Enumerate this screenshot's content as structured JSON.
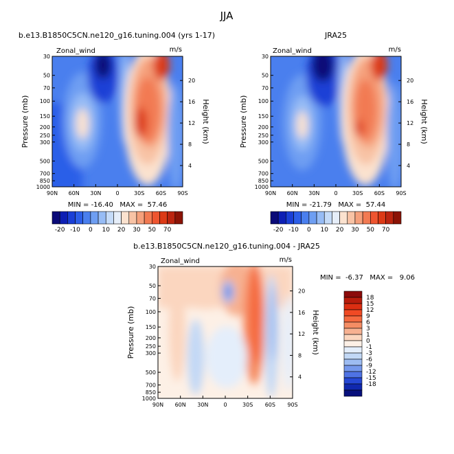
{
  "figure_title": "JJA",
  "chart_data": [
    {
      "type": "heatmap",
      "title": "b.e13.B1850C5CN.ne120_g16.tuning.004 (yrs 1-17)",
      "left_label": "Zonal_wind",
      "units": "m/s",
      "ylabel": "Pressure (mb)",
      "ylabel_right": "Height (km)",
      "x_ticks": [
        "90N",
        "60N",
        "30N",
        "0",
        "30S",
        "60S",
        "90S"
      ],
      "y_ticks": [
        "30",
        "50",
        "70",
        "100",
        "150",
        "200",
        "250",
        "300",
        "500",
        "700",
        "850",
        "1000"
      ],
      "y_ticks_right": [
        "20",
        "16",
        "12",
        "8",
        "4"
      ],
      "stats": "MIN = -16.40   MAX =  57.46",
      "colorbar_labels": [
        "-20",
        "-10",
        "0",
        "10",
        "20",
        "30",
        "50",
        "70"
      ]
    },
    {
      "type": "heatmap",
      "title": "JRA25",
      "left_label": "Zonal_wind",
      "units": "m/s",
      "ylabel": "Pressure (mb)",
      "ylabel_right": "Height (km)",
      "x_ticks": [
        "90N",
        "60N",
        "30N",
        "0",
        "30S",
        "60S",
        "90S"
      ],
      "y_ticks": [
        "30",
        "50",
        "70",
        "100",
        "150",
        "200",
        "250",
        "300",
        "500",
        "700",
        "850",
        "1000"
      ],
      "y_ticks_right": [
        "20",
        "16",
        "12",
        "8",
        "4"
      ],
      "stats": "MIN = -21.79   MAX =  57.44",
      "colorbar_labels": [
        "-20",
        "-10",
        "0",
        "10",
        "20",
        "30",
        "50",
        "70"
      ]
    },
    {
      "type": "heatmap",
      "title": "b.e13.B1850C5CN.ne120_g16.tuning.004 - JRA25",
      "left_label": "Zonal_wind",
      "units": "m/s",
      "ylabel": "Pressure (mb)",
      "ylabel_right": "Height (km)",
      "x_ticks": [
        "90N",
        "60N",
        "30N",
        "0",
        "30S",
        "60S",
        "90S"
      ],
      "y_ticks": [
        "30",
        "50",
        "70",
        "100",
        "150",
        "200",
        "250",
        "300",
        "500",
        "700",
        "850",
        "1000"
      ],
      "y_ticks_right": [
        "20",
        "16",
        "12",
        "8",
        "4"
      ],
      "stats": "MIN =  -6.37   MAX =   9.06",
      "colorbar_labels": [
        "18",
        "15",
        "12",
        "9",
        "6",
        "3",
        "1",
        "0",
        "-1",
        "-3",
        "-6",
        "-9",
        "-12",
        "-15",
        "-18"
      ]
    }
  ],
  "colors": {
    "main_scale": [
      "#0a0a78",
      "#0d1fb4",
      "#1a3fd6",
      "#2c5ee8",
      "#4a7fee",
      "#6e9ef2",
      "#97bcf5",
      "#c5dbf8",
      "#e6eef9",
      "#fbe2cf",
      "#f8c3a5",
      "#f5a07c",
      "#f27a52",
      "#ee5530",
      "#dc3a16",
      "#bb2510",
      "#8b1306"
    ],
    "diff_scale": [
      "#8b0a0a",
      "#b81c0c",
      "#dc2e12",
      "#f04a24",
      "#f56a40",
      "#f58d64",
      "#f7b191",
      "#fbd6bf",
      "#fdf0e6",
      "#e4eefb",
      "#c2d8f6",
      "#9dbcf2",
      "#7598ec",
      "#4f73e4",
      "#2648d4",
      "#1028ae",
      "#07107c"
    ]
  }
}
